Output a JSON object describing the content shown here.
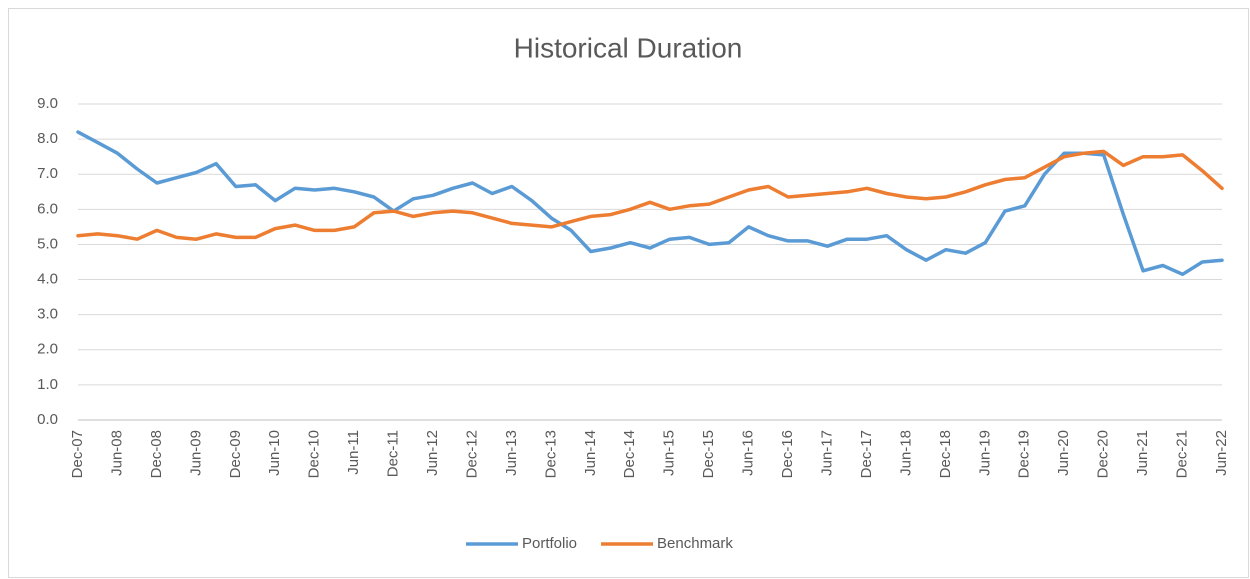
{
  "chart_data": {
    "type": "line",
    "title": "Historical Duration",
    "categories": [
      "Dec-07",
      null,
      "Jun-08",
      null,
      "Dec-08",
      null,
      "Jun-09",
      null,
      "Dec-09",
      null,
      "Jun-10",
      null,
      "Dec-10",
      null,
      "Jun-11",
      null,
      "Dec-11",
      null,
      "Jun-12",
      null,
      "Dec-12",
      null,
      "Jun-13",
      null,
      "Dec-13",
      null,
      "Jun-14",
      null,
      "Dec-14",
      null,
      "Jun-15",
      null,
      "Dec-15",
      null,
      "Jun-16",
      null,
      "Dec-16",
      null,
      "Jun-17",
      null,
      "Dec-17",
      null,
      "Jun-18",
      null,
      "Dec-18",
      null,
      "Jun-19",
      null,
      "Dec-19",
      null,
      "Jun-20",
      null,
      "Dec-20",
      null,
      "Jun-21",
      null,
      "Dec-21",
      null,
      "Jun-22"
    ],
    "series": [
      {
        "name": "Portfolio",
        "color": "#5b9bd5",
        "values": [
          8.2,
          7.9,
          7.6,
          7.15,
          6.75,
          6.9,
          7.05,
          7.3,
          6.65,
          6.7,
          6.25,
          6.6,
          6.55,
          6.6,
          6.5,
          6.35,
          5.95,
          6.3,
          6.4,
          6.6,
          6.75,
          6.45,
          6.65,
          6.25,
          5.75,
          5.4,
          4.8,
          4.9,
          5.05,
          4.9,
          5.15,
          5.2,
          5.0,
          5.05,
          5.5,
          5.25,
          5.1,
          5.1,
          4.95,
          5.15,
          5.15,
          5.25,
          4.85,
          4.55,
          4.85,
          4.75,
          5.05,
          5.95,
          6.1,
          7.0,
          7.6,
          7.6,
          7.55,
          5.85,
          4.25,
          4.4,
          4.15,
          4.5,
          4.55
        ]
      },
      {
        "name": "Benchmark",
        "color": "#ed7d31",
        "values": [
          5.25,
          5.3,
          5.25,
          5.15,
          5.4,
          5.2,
          5.15,
          5.3,
          5.2,
          5.2,
          5.45,
          5.55,
          5.4,
          5.4,
          5.5,
          5.9,
          5.95,
          5.8,
          5.9,
          5.95,
          5.9,
          5.75,
          5.6,
          5.55,
          5.5,
          5.65,
          5.8,
          5.85,
          6.0,
          6.2,
          6.0,
          6.1,
          6.15,
          6.35,
          6.55,
          6.65,
          6.35,
          6.4,
          6.45,
          6.5,
          6.6,
          6.45,
          6.35,
          6.3,
          6.35,
          6.5,
          6.7,
          6.85,
          6.9,
          7.2,
          7.5,
          7.6,
          7.65,
          7.25,
          7.5,
          7.5,
          7.55,
          7.1,
          6.6
        ]
      }
    ],
    "ylim": [
      0,
      9
    ],
    "yticks": [
      {
        "value": 0,
        "label": "0.0"
      },
      {
        "value": 1,
        "label": "1.0"
      },
      {
        "value": 2,
        "label": "2.0"
      },
      {
        "value": 3,
        "label": "3.0"
      },
      {
        "value": 4,
        "label": "4.0"
      },
      {
        "value": 5,
        "label": "5.0"
      },
      {
        "value": 6,
        "label": "6.0"
      },
      {
        "value": 7,
        "label": "7.0"
      },
      {
        "value": 8,
        "label": "8.0"
      },
      {
        "value": 9,
        "label": "9.0"
      }
    ],
    "grid": true,
    "legend": "bottom"
  }
}
